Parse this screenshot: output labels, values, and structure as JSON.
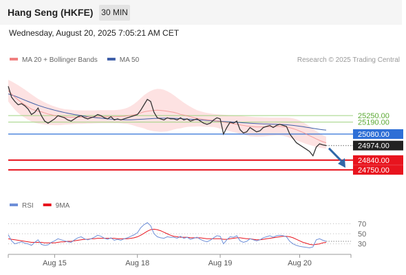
{
  "header": {
    "title": "Hang Seng (HKFE)",
    "timeframe": "30 MIN",
    "datetime": "Wednesday, August 20, 2025 7:05:21 AM CET",
    "source": "Research © 2025 Trading Central"
  },
  "colors": {
    "price": "#333333",
    "bollinger_line": "#f08080",
    "bollinger_fill": "#fde2e2",
    "ma50": "#3f5fa8",
    "support": "#e8141e",
    "resistance": "#9fd37f",
    "pivot": "#2e6fd6",
    "rsi": "#6e8fd8",
    "rsi_ma": "#e8141e",
    "last_price": "#222222"
  },
  "chart_data": [
    {
      "type": "line",
      "panel": "price",
      "legend": [
        {
          "name": "MA 20 + Bollinger Bands",
          "color": "#f08080"
        },
        {
          "name": "MA 50",
          "color": "#3f5fa8"
        }
      ],
      "x_ticks": [
        "Aug 15",
        "Aug 18",
        "Aug 19",
        "Aug 20"
      ],
      "x_tick_index": [
        14,
        39,
        64,
        88
      ],
      "ylim": [
        24700,
        25650
      ],
      "grid": false,
      "legend_position": "top-left",
      "price_labels": [
        {
          "label": "25250.00",
          "value": 25250,
          "kind": "resistance"
        },
        {
          "label": "25190.00",
          "value": 25190,
          "kind": "resistance"
        },
        {
          "label": "25080.00",
          "value": 25080,
          "kind": "pivot"
        },
        {
          "label": "24974.00",
          "value": 24974,
          "kind": "last"
        },
        {
          "label": "24840.00",
          "value": 24840,
          "kind": "support"
        },
        {
          "label": "24750.00",
          "value": 24750,
          "kind": "support"
        }
      ],
      "series": [
        {
          "name": "Price",
          "values": [
            25520,
            25420,
            25380,
            25350,
            25360,
            25340,
            25310,
            25260,
            25280,
            25320,
            25250,
            25200,
            25180,
            25200,
            25220,
            25250,
            25240,
            25230,
            25210,
            25200,
            25220,
            25240,
            25250,
            25230,
            25220,
            25230,
            25240,
            25260,
            25250,
            25230,
            25220,
            25240,
            25210,
            25220,
            25210,
            25220,
            25230,
            25240,
            25250,
            25260,
            25300,
            25350,
            25400,
            25380,
            25280,
            25230,
            25220,
            25210,
            25230,
            25220,
            25220,
            25210,
            25230,
            25210,
            25220,
            25200,
            25210,
            25220,
            25200,
            25180,
            25170,
            25180,
            25210,
            25230,
            25220,
            25080,
            25140,
            25190,
            25180,
            25200,
            25120,
            25090,
            25100,
            25140,
            25120,
            25100,
            25110,
            25140,
            25150,
            25160,
            25140,
            25160,
            25170,
            25160,
            25150,
            25080,
            25040,
            25000,
            24980,
            24960,
            24940,
            24920,
            24880,
            24960,
            24990,
            24980,
            24974
          ]
        },
        {
          "name": "MA 20",
          "values": [
            25480,
            25450,
            25420,
            25395,
            25370,
            25350,
            25330,
            25310,
            25300,
            25290,
            25285,
            25275,
            25265,
            25258,
            25250,
            25245,
            25240,
            25238,
            25236,
            25235,
            25235,
            25235,
            25236,
            25237,
            25238,
            25238,
            25238,
            25239,
            25240,
            25240,
            25240,
            25240,
            25240,
            25241,
            25242,
            25244,
            25248,
            25252,
            25258,
            25265,
            25275,
            25285,
            25290,
            25295,
            25298,
            25300,
            25298,
            25295,
            25290,
            25285,
            25280,
            25272,
            25262,
            25255,
            25248,
            25240,
            25232,
            25225,
            25220,
            25215,
            25212,
            25208,
            25205,
            25200,
            25195,
            25190,
            25185,
            25180,
            25175,
            25170,
            25165,
            25160,
            25155,
            25150,
            25148,
            25146,
            25146,
            25146,
            25147,
            25148,
            25149,
            25150,
            25150,
            25148,
            25144,
            25138,
            25130,
            25120,
            25108,
            25095,
            25080,
            25065,
            25050,
            25035,
            25022,
            25010,
            25000
          ]
        },
        {
          "name": "BB Upper",
          "values": [
            25580,
            25565,
            25548,
            25530,
            25510,
            25490,
            25468,
            25446,
            25425,
            25405,
            25388,
            25372,
            25358,
            25345,
            25334,
            25324,
            25316,
            25310,
            25306,
            25303,
            25300,
            25299,
            25298,
            25298,
            25298,
            25298,
            25298,
            25299,
            25300,
            25300,
            25300,
            25300,
            25300,
            25302,
            25306,
            25313,
            25323,
            25338,
            25358,
            25383,
            25410,
            25438,
            25460,
            25478,
            25490,
            25496,
            25495,
            25488,
            25475,
            25458,
            25438,
            25415,
            25392,
            25370,
            25350,
            25332,
            25315,
            25300,
            25290,
            25282,
            25275,
            25270,
            25265,
            25262,
            25260,
            25258,
            25256,
            25254,
            25252,
            25250,
            25248,
            25245,
            25242,
            25240,
            25238,
            25236,
            25235,
            25234,
            25233,
            25232,
            25232,
            25232,
            25232,
            25232,
            25232,
            25230,
            25225,
            25217,
            25205,
            25190,
            25172,
            25150,
            25128,
            25108,
            25088,
            25070,
            25055
          ]
        },
        {
          "name": "BB Lower",
          "values": [
            25380,
            25340,
            25305,
            25275,
            25250,
            25230,
            25212,
            25195,
            25184,
            25176,
            25172,
            25168,
            25165,
            25163,
            25162,
            25162,
            25163,
            25166,
            25168,
            25170,
            25172,
            25173,
            25174,
            25175,
            25176,
            25177,
            25178,
            25179,
            25180,
            25180,
            25180,
            25180,
            25180,
            25180,
            25178,
            25175,
            25173,
            25166,
            25158,
            25147,
            25140,
            25132,
            25120,
            25112,
            25106,
            25104,
            25101,
            25102,
            25105,
            25112,
            25122,
            25129,
            25132,
            25140,
            25146,
            25148,
            25149,
            25150,
            25150,
            25148,
            25149,
            25146,
            25145,
            25138,
            25130,
            25122,
            25114,
            25106,
            25098,
            25090,
            25082,
            25075,
            25068,
            25060,
            25058,
            25056,
            25057,
            25058,
            25061,
            25064,
            25066,
            25068,
            25068,
            25064,
            25056,
            25046,
            25035,
            25023,
            25011,
            25000,
            24988,
            24980,
            24972,
            24962,
            24956,
            24950,
            24945
          ]
        },
        {
          "name": "MA 50",
          "values": [
            25450,
            25440,
            25430,
            25418,
            25405,
            25392,
            25380,
            25368,
            25356,
            25345,
            25335,
            25325,
            25316,
            25308,
            25300,
            25292,
            25285,
            25278,
            25272,
            25266,
            25260,
            25255,
            25250,
            25245,
            25240,
            25236,
            25232,
            25229,
            25226,
            25223,
            25220,
            25218,
            25216,
            25214,
            25213,
            25212,
            25212,
            25212,
            25213,
            25214,
            25216,
            25218,
            25220,
            25222,
            25224,
            25225,
            25226,
            25226,
            25226,
            25226,
            25225,
            25224,
            25222,
            25220,
            25218,
            25216,
            25214,
            25212,
            25210,
            25208,
            25206,
            25204,
            25202,
            25200,
            25198,
            25196,
            25194,
            25192,
            25190,
            25188,
            25186,
            25184,
            25182,
            25180,
            25178,
            25176,
            25175,
            25174,
            25173,
            25172,
            25171,
            25170,
            25169,
            25168,
            25166,
            25163,
            25160,
            25156,
            25152,
            25148,
            25143,
            25138,
            25133,
            25128,
            25124,
            25120,
            25116
          ]
        }
      ],
      "forecast": {
        "from": 24974,
        "to": 24820
      }
    },
    {
      "type": "line",
      "panel": "rsi",
      "legend": [
        {
          "name": "RSI",
          "color": "#6e8fd8"
        },
        {
          "name": "9MA",
          "color": "#e8141e"
        }
      ],
      "legend_position": "top-left",
      "ylim": [
        20,
        80
      ],
      "y_ticks": [
        70,
        50,
        30
      ],
      "dotted_level": 35,
      "series": [
        {
          "name": "RSI",
          "values": [
            48,
            36,
            30,
            32,
            34,
            31,
            30,
            27,
            33,
            38,
            29,
            27,
            28,
            33,
            36,
            40,
            38,
            36,
            34,
            33,
            38,
            42,
            44,
            40,
            38,
            40,
            43,
            47,
            45,
            41,
            39,
            42,
            37,
            39,
            37,
            40,
            42,
            45,
            48,
            52,
            62,
            68,
            72,
            66,
            50,
            44,
            42,
            41,
            44,
            43,
            43,
            41,
            45,
            41,
            43,
            39,
            41,
            43,
            39,
            36,
            34,
            37,
            42,
            46,
            45,
            30,
            38,
            44,
            43,
            46,
            36,
            33,
            35,
            40,
            38,
            36,
            38,
            42,
            44,
            46,
            43,
            46,
            47,
            46,
            44,
            35,
            30,
            27,
            25,
            24,
            23,
            22,
            24,
            38,
            40,
            37,
            35
          ]
        },
        {
          "name": "9MA",
          "values": [
            40,
            39,
            38,
            37,
            36,
            35,
            34,
            33,
            33,
            33,
            33,
            32,
            32,
            32,
            32,
            33,
            34,
            34,
            35,
            35,
            36,
            37,
            38,
            39,
            39,
            40,
            40,
            41,
            41,
            41,
            41,
            41,
            41,
            40,
            40,
            40,
            40,
            41,
            42,
            44,
            47,
            51,
            55,
            58,
            59,
            58,
            56,
            53,
            50,
            47,
            45,
            44,
            43,
            43,
            43,
            42,
            42,
            42,
            42,
            41,
            40,
            40,
            40,
            40,
            40,
            39,
            39,
            40,
            41,
            42,
            42,
            41,
            40,
            40,
            39,
            38,
            38,
            39,
            40,
            41,
            42,
            43,
            44,
            45,
            45,
            44,
            42,
            39,
            36,
            33,
            31,
            29,
            28,
            29,
            30,
            32,
            33
          ]
        }
      ]
    }
  ]
}
